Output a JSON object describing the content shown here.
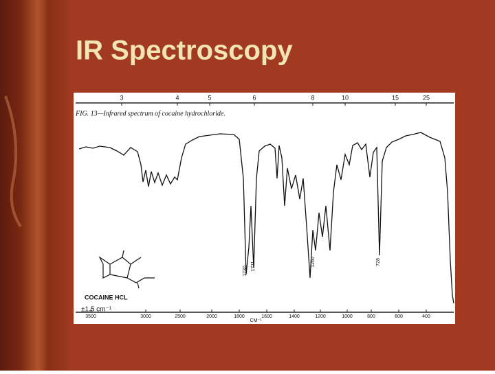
{
  "title": "IR Spectroscopy",
  "figure": {
    "caption": "FIG. 13—Infrared spectrum of cocaine hydrochloride.",
    "top_axis": [
      "3",
      "4",
      "5",
      "6",
      "8",
      "10",
      "15",
      "25"
    ],
    "peak_labels": [
      "1730",
      "1711",
      "1260",
      "728"
    ],
    "compound": "COCAINE HCL",
    "resolution": "±1.5 cm⁻¹",
    "bottom_axis": [
      "3500",
      "3000",
      "2500",
      "2000",
      "1800",
      "1600",
      "1400",
      "1200",
      "1000",
      "800",
      "600",
      "400"
    ],
    "bottom_axis_unit": "CM⁻¹"
  }
}
